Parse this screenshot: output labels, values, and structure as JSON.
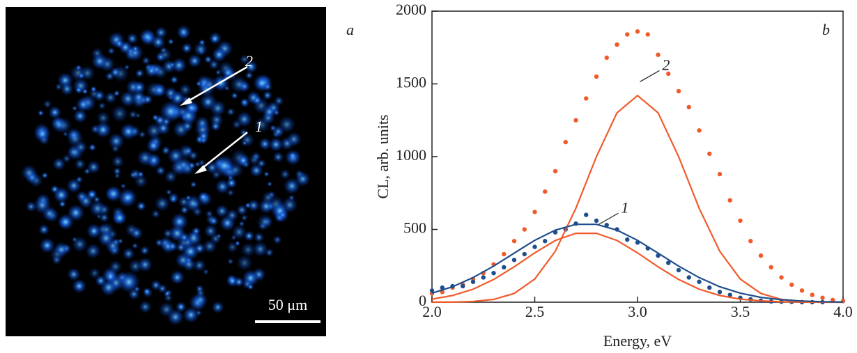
{
  "image_panel": {
    "panel_label": "a",
    "markers": [
      "2",
      "1"
    ],
    "scale_bar": "50 μm"
  },
  "chart_data": {
    "type": "scatter",
    "panel_label": "b",
    "xlabel": "Energy, eV",
    "ylabel": "CL, arb. units",
    "xlim": [
      2.0,
      4.0
    ],
    "ylim": [
      0,
      2000
    ],
    "xticks": [
      {
        "value": 2.0,
        "label": "2.0"
      },
      {
        "value": 2.5,
        "label": "2.5"
      },
      {
        "value": 3.0,
        "label": "3.0"
      },
      {
        "value": 3.5,
        "label": "3.5"
      },
      {
        "value": 4.0,
        "label": "4.0"
      }
    ],
    "yticks": [
      0,
      500,
      1000,
      1500,
      2000
    ],
    "annotations": [
      {
        "text": "1",
        "x": 2.92,
        "y": 640
      },
      {
        "text": "2",
        "x": 3.12,
        "y": 1620
      }
    ],
    "series": [
      {
        "mode": "markers",
        "color": "#f05a2a",
        "x": [
          2.0,
          2.05,
          2.1,
          2.15,
          2.2,
          2.25,
          2.3,
          2.35,
          2.4,
          2.45,
          2.5,
          2.55,
          2.6,
          2.65,
          2.7,
          2.75,
          2.8,
          2.85,
          2.9,
          2.95,
          3.0,
          3.05,
          3.1,
          3.15,
          3.2,
          3.25,
          3.3,
          3.35,
          3.4,
          3.45,
          3.5,
          3.55,
          3.6,
          3.65,
          3.7,
          3.75,
          3.8,
          3.85,
          3.9,
          3.95,
          4.0
        ],
        "values": [
          60,
          70,
          100,
          120,
          160,
          200,
          260,
          330,
          420,
          500,
          620,
          760,
          900,
          1100,
          1250,
          1400,
          1550,
          1680,
          1770,
          1840,
          1860,
          1840,
          1700,
          1570,
          1450,
          1340,
          1180,
          1020,
          880,
          700,
          560,
          420,
          320,
          240,
          170,
          120,
          80,
          50,
          30,
          15,
          8
        ]
      },
      {
        "mode": "markers",
        "color": "#1f4e8c",
        "x": [
          2.0,
          2.05,
          2.1,
          2.15,
          2.2,
          2.25,
          2.3,
          2.35,
          2.4,
          2.45,
          2.5,
          2.55,
          2.6,
          2.65,
          2.7,
          2.75,
          2.8,
          2.85,
          2.9,
          2.95,
          3.0,
          3.05,
          3.1,
          3.15,
          3.2,
          3.25,
          3.3,
          3.35,
          3.4,
          3.45,
          3.5,
          3.55,
          3.6,
          3.65,
          3.7,
          3.75,
          3.8,
          3.85,
          3.9
        ],
        "values": [
          80,
          100,
          110,
          110,
          140,
          170,
          200,
          240,
          290,
          330,
          380,
          420,
          480,
          500,
          540,
          600,
          560,
          530,
          500,
          430,
          410,
          370,
          320,
          270,
          220,
          170,
          140,
          100,
          70,
          50,
          30,
          20,
          10,
          5,
          3,
          2,
          0,
          0,
          0
        ]
      },
      {
        "mode": "line",
        "color": "#f05a2a",
        "x": [
          2.0,
          2.1,
          2.2,
          2.3,
          2.4,
          2.5,
          2.6,
          2.7,
          2.8,
          2.9,
          3.0,
          3.1,
          3.2,
          3.3,
          3.4,
          3.5,
          3.6,
          3.7,
          3.8,
          3.9,
          4.0
        ],
        "values": [
          0,
          1,
          5,
          19,
          60,
          159,
          350,
          645,
          1000,
          1301,
          1420,
          1301,
          1000,
          645,
          350,
          159,
          60,
          19,
          5,
          1,
          0
        ]
      },
      {
        "mode": "line",
        "color": "#f05a2a",
        "x": [
          2.0,
          2.1,
          2.2,
          2.3,
          2.4,
          2.5,
          2.6,
          2.7,
          2.8,
          2.9,
          3.0,
          3.1,
          3.2,
          3.3,
          3.4,
          3.5,
          3.6,
          3.7,
          3.8,
          3.9,
          4.0
        ],
        "values": [
          21,
          46,
          89,
          156,
          243,
          339,
          424,
          473,
          473,
          424,
          339,
          243,
          156,
          89,
          46,
          21,
          9,
          3,
          1,
          0,
          0
        ]
      },
      {
        "mode": "line",
        "color": "#1f4e8c",
        "x": [
          2.0,
          2.1,
          2.2,
          2.3,
          2.4,
          2.5,
          2.6,
          2.7,
          2.8,
          2.9,
          3.0,
          3.1,
          3.2,
          3.3,
          3.4,
          3.5,
          3.6,
          3.7,
          3.8,
          3.9,
          4.0
        ],
        "values": [
          62,
          106,
          169,
          248,
          337,
          425,
          495,
          535,
          535,
          495,
          425,
          337,
          248,
          169,
          106,
          62,
          33,
          17,
          8,
          3,
          1
        ]
      }
    ]
  }
}
